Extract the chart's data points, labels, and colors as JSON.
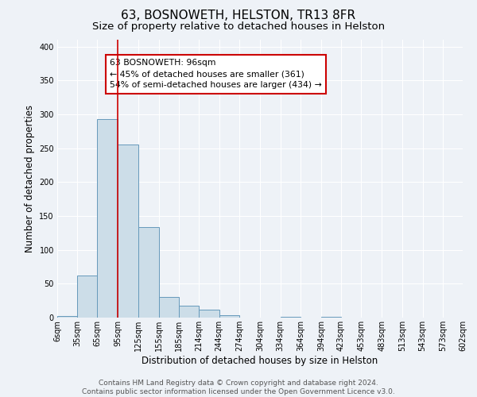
{
  "title": "63, BOSNOWETH, HELSTON, TR13 8FR",
  "subtitle": "Size of property relative to detached houses in Helston",
  "xlabel": "Distribution of detached houses by size in Helston",
  "ylabel": "Number of detached properties",
  "bar_edges": [
    6,
    35,
    65,
    95,
    125,
    155,
    185,
    214,
    244,
    274,
    304,
    334,
    364,
    394,
    423,
    453,
    483,
    513,
    543,
    573,
    602
  ],
  "bar_heights": [
    2,
    62,
    293,
    255,
    133,
    30,
    18,
    12,
    3,
    0,
    0,
    1,
    0,
    1,
    0,
    0,
    0,
    0,
    0,
    0
  ],
  "bar_color": "#ccdde8",
  "bar_edgecolor": "#6699bb",
  "bar_linewidth": 0.7,
  "vline_x": 95,
  "vline_color": "#cc0000",
  "vline_linewidth": 1.2,
  "annotation_title": "63 BOSNOWETH: 96sqm",
  "annotation_line1": "← 45% of detached houses are smaller (361)",
  "annotation_line2": "54% of semi-detached houses are larger (434) →",
  "ylim": [
    0,
    410
  ],
  "yticks": [
    0,
    50,
    100,
    150,
    200,
    250,
    300,
    350,
    400
  ],
  "tick_labels": [
    "6sqm",
    "35sqm",
    "65sqm",
    "95sqm",
    "125sqm",
    "155sqm",
    "185sqm",
    "214sqm",
    "244sqm",
    "274sqm",
    "304sqm",
    "334sqm",
    "364sqm",
    "394sqm",
    "423sqm",
    "453sqm",
    "483sqm",
    "513sqm",
    "543sqm",
    "573sqm",
    "602sqm"
  ],
  "footer_line1": "Contains HM Land Registry data © Crown copyright and database right 2024.",
  "footer_line2": "Contains public sector information licensed under the Open Government Licence v3.0.",
  "bg_color": "#eef2f7",
  "plot_bg_color": "#eef2f7",
  "grid_color": "#ffffff",
  "title_fontsize": 11,
  "subtitle_fontsize": 9.5,
  "axis_label_fontsize": 8.5,
  "tick_fontsize": 7,
  "annotation_fontsize": 7.8,
  "footer_fontsize": 6.5
}
